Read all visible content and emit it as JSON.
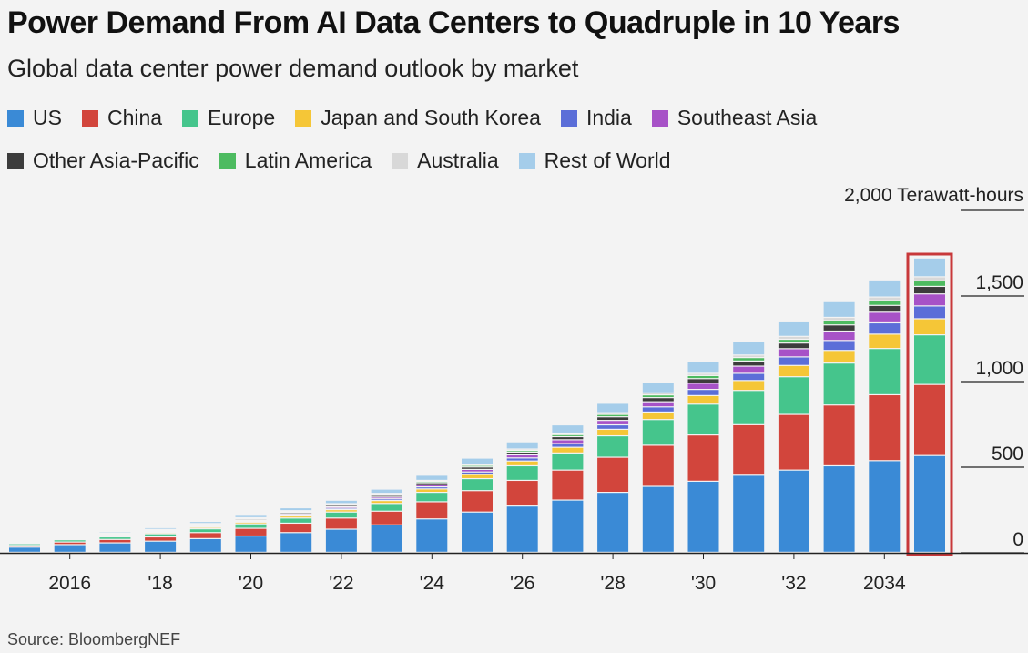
{
  "header": {
    "title": "Power Demand From AI Data Centers to Quadruple in 10 Years",
    "subtitle": "Global data center power demand outlook by market"
  },
  "footer": {
    "source": "Source: BloombergNEF"
  },
  "highlight_color": "#c8383a",
  "chart_data": {
    "type": "bar",
    "stacked": true,
    "title": "Power Demand From AI Data Centers to Quadruple in 10 Years",
    "subtitle": "Global data center power demand outlook by market",
    "ylabel": "2,000 Terawatt-hours",
    "ylim": [
      0,
      2000
    ],
    "yticks": [
      0,
      500,
      1000,
      1500
    ],
    "ytick_labels": [
      "0",
      "500",
      "1,000",
      "1,500"
    ],
    "top_tick_label": "2,000 Terawatt-hours",
    "x": [
      2015,
      2016,
      2017,
      2018,
      2019,
      2020,
      2021,
      2022,
      2023,
      2024,
      2025,
      2026,
      2027,
      2028,
      2029,
      2030,
      2031,
      2032,
      2033,
      2034,
      2035
    ],
    "x_tick_labels": [
      {
        "year": 2016,
        "label": "2016"
      },
      {
        "year": 2018,
        "label": "'18"
      },
      {
        "year": 2020,
        "label": "'20"
      },
      {
        "year": 2022,
        "label": "'22"
      },
      {
        "year": 2024,
        "label": "'24"
      },
      {
        "year": 2026,
        "label": "'26"
      },
      {
        "year": 2028,
        "label": "'28"
      },
      {
        "year": 2030,
        "label": "'30"
      },
      {
        "year": 2032,
        "label": "'32"
      },
      {
        "year": 2034,
        "label": "2034"
      }
    ],
    "highlight_year": 2035,
    "legend_position": "top",
    "series": [
      {
        "name": "US",
        "color": "#3a8ad6",
        "values": [
          30,
          45,
          55,
          65,
          80,
          95,
          115,
          135,
          160,
          195,
          235,
          270,
          305,
          350,
          385,
          415,
          450,
          480,
          505,
          535,
          565
        ]
      },
      {
        "name": "China",
        "color": "#d2453c",
        "values": [
          10,
          15,
          20,
          25,
          35,
          45,
          55,
          65,
          80,
          100,
          125,
          150,
          175,
          205,
          240,
          270,
          295,
          325,
          355,
          385,
          415
        ]
      },
      {
        "name": "Europe",
        "color": "#45c58c",
        "values": [
          10,
          13,
          15,
          18,
          22,
          26,
          30,
          35,
          45,
          55,
          70,
          85,
          100,
          125,
          150,
          180,
          200,
          220,
          245,
          270,
          290
        ]
      },
      {
        "name": "Japan and South Korea",
        "color": "#f5c637",
        "values": [
          4,
          5,
          6,
          7,
          8,
          10,
          12,
          14,
          17,
          20,
          24,
          28,
          33,
          38,
          44,
          50,
          58,
          66,
          74,
          84,
          94
        ]
      },
      {
        "name": "India",
        "color": "#5b6ed8",
        "values": [
          2,
          3,
          3,
          4,
          5,
          6,
          7,
          8,
          10,
          12,
          15,
          18,
          22,
          26,
          30,
          36,
          42,
          50,
          58,
          66,
          75
        ]
      },
      {
        "name": "Southeast Asia",
        "color": "#a752c7",
        "values": [
          2,
          3,
          3,
          4,
          5,
          6,
          7,
          8,
          10,
          12,
          15,
          18,
          22,
          26,
          30,
          36,
          42,
          48,
          55,
          62,
          70
        ]
      },
      {
        "name": "Other Asia-Pacific",
        "color": "#3c3c3c",
        "values": [
          3,
          4,
          4,
          5,
          6,
          7,
          8,
          9,
          10,
          12,
          14,
          16,
          18,
          21,
          24,
          27,
          30,
          33,
          36,
          40,
          44
        ]
      },
      {
        "name": "Latin America",
        "color": "#4dbb60",
        "values": [
          2,
          2,
          3,
          3,
          4,
          4,
          5,
          6,
          7,
          8,
          9,
          10,
          12,
          14,
          16,
          18,
          20,
          22,
          25,
          28,
          32
        ]
      },
      {
        "name": "Australia",
        "color": "#d8d8d8",
        "values": [
          2,
          2,
          2,
          3,
          3,
          3,
          4,
          4,
          5,
          6,
          7,
          8,
          9,
          10,
          12,
          13,
          15,
          17,
          19,
          21,
          24
        ]
      },
      {
        "name": "Rest of World",
        "color": "#a5cdea",
        "values": [
          5,
          6,
          8,
          10,
          12,
          14,
          17,
          20,
          25,
          30,
          36,
          42,
          48,
          55,
          62,
          70,
          78,
          85,
          92,
          100,
          110
        ]
      }
    ]
  }
}
